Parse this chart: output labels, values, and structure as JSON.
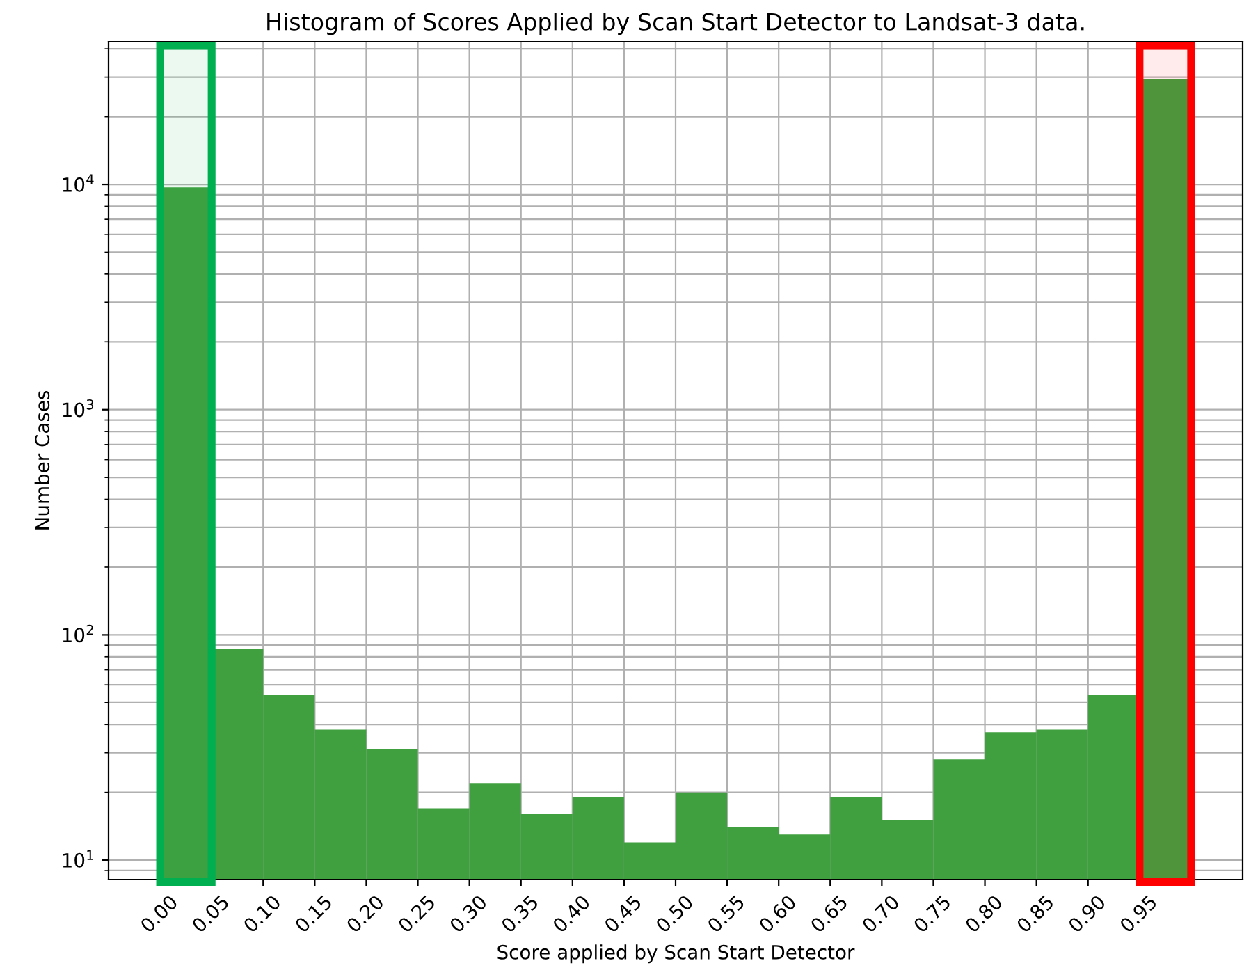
{
  "chart_data": {
    "type": "histogram",
    "title": "Histogram of Scores Applied by Scan Start Detector to Landsat-3 data.",
    "xlabel": "Score applied by Scan Start Detector",
    "ylabel": "Number Cases",
    "bins": [
      0.0,
      0.05,
      0.1,
      0.15,
      0.2,
      0.25,
      0.3,
      0.35,
      0.4,
      0.45,
      0.5,
      0.55,
      0.6,
      0.65,
      0.7,
      0.75,
      0.8,
      0.85,
      0.9,
      0.95,
      1.0
    ],
    "values": [
      9700,
      87,
      54,
      38,
      31,
      17,
      22,
      16,
      19,
      12,
      20,
      14,
      13,
      19,
      15,
      28,
      37,
      38,
      54,
      29500
    ],
    "color": "#40a040",
    "log": "y",
    "xlim": [
      -0.05,
      1.05
    ],
    "ylim": [
      8.2,
      43000
    ],
    "xticks": [
      {
        "value": 0.0,
        "label": "0.00"
      },
      {
        "value": 0.05,
        "label": "0.05"
      },
      {
        "value": 0.1,
        "label": "0.10"
      },
      {
        "value": 0.15,
        "label": "0.15"
      },
      {
        "value": 0.2,
        "label": "0.20"
      },
      {
        "value": 0.25,
        "label": "0.25"
      },
      {
        "value": 0.3,
        "label": "0.30"
      },
      {
        "value": 0.35,
        "label": "0.35"
      },
      {
        "value": 0.4,
        "label": "0.40"
      },
      {
        "value": 0.45,
        "label": "0.45"
      },
      {
        "value": 0.5,
        "label": "0.50"
      },
      {
        "value": 0.55,
        "label": "0.55"
      },
      {
        "value": 0.6,
        "label": "0.60"
      },
      {
        "value": 0.65,
        "label": "0.65"
      },
      {
        "value": 0.7,
        "label": "0.70"
      },
      {
        "value": 0.75,
        "label": "0.75"
      },
      {
        "value": 0.8,
        "label": "0.80"
      },
      {
        "value": 0.85,
        "label": "0.85"
      },
      {
        "value": 0.9,
        "label": "0.90"
      },
      {
        "value": 0.95,
        "label": "0.95"
      }
    ],
    "yticks": [
      {
        "value": 10,
        "label": "10$^{1}$"
      },
      {
        "value": 100,
        "label": "10$^{2}$"
      },
      {
        "value": 1000,
        "label": "10$^{3}$"
      },
      {
        "value": 10000,
        "label": "10$^{4}$"
      }
    ],
    "grid": true,
    "bands": [
      {
        "axis": "x",
        "from": 0.0,
        "to": 0.05,
        "color": "#00b050"
      },
      {
        "axis": "x",
        "from": 0.95,
        "to": 1.0,
        "color": "#ff0000"
      }
    ]
  }
}
